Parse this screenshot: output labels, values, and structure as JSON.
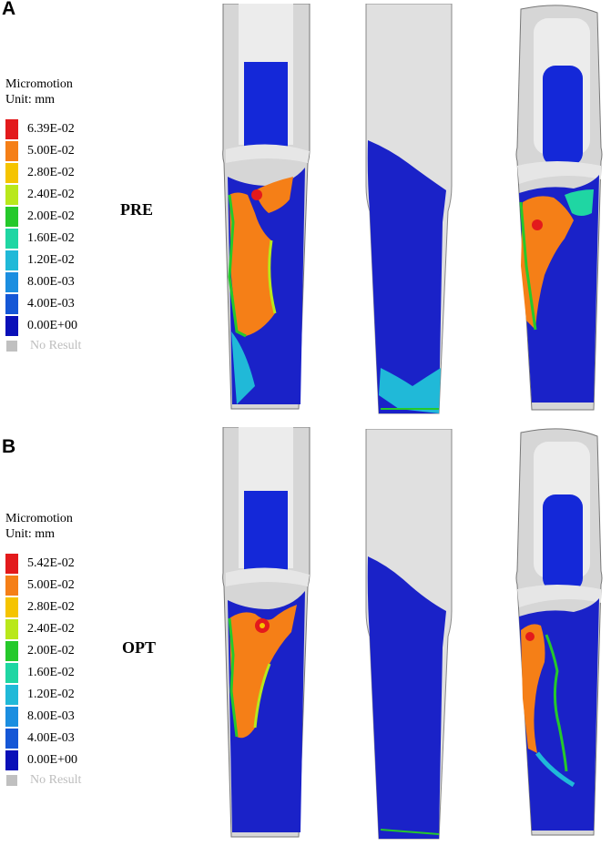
{
  "panels": [
    {
      "letter": "A",
      "condition": "PRE",
      "legend": {
        "title_line1": "Micromotion",
        "title_line2": "Unit: mm",
        "levels": [
          {
            "value": "6.39E-02",
            "color": "#e31a1c"
          },
          {
            "value": "5.00E-02",
            "color": "#f57f17"
          },
          {
            "value": "2.80E-02",
            "color": "#f5c400"
          },
          {
            "value": "2.40E-02",
            "color": "#b9e81b"
          },
          {
            "value": "2.00E-02",
            "color": "#25c92b"
          },
          {
            "value": "1.60E-02",
            "color": "#1fd6a3"
          },
          {
            "value": "1.20E-02",
            "color": "#20b9d8"
          },
          {
            "value": "8.00E-03",
            "color": "#1b8ee0"
          },
          {
            "value": "4.00E-03",
            "color": "#1557d6"
          },
          {
            "value": "0.00E+00",
            "color": "#0a10b8"
          }
        ],
        "no_result": "No Result"
      }
    },
    {
      "letter": "B",
      "condition": "OPT",
      "legend": {
        "title_line1": "Micromotion",
        "title_line2": "Unit: mm",
        "levels": [
          {
            "value": "5.42E-02",
            "color": "#e31a1c"
          },
          {
            "value": "5.00E-02",
            "color": "#f57f17"
          },
          {
            "value": "2.80E-02",
            "color": "#f5c400"
          },
          {
            "value": "2.40E-02",
            "color": "#b9e81b"
          },
          {
            "value": "2.00E-02",
            "color": "#25c92b"
          },
          {
            "value": "1.60E-02",
            "color": "#1fd6a3"
          },
          {
            "value": "1.20E-02",
            "color": "#20b9d8"
          },
          {
            "value": "8.00E-03",
            "color": "#1b8ee0"
          },
          {
            "value": "4.00E-03",
            "color": "#1557d6"
          },
          {
            "value": "0.00E+00",
            "color": "#0a10b8"
          }
        ],
        "no_result": "No Result"
      }
    }
  ]
}
